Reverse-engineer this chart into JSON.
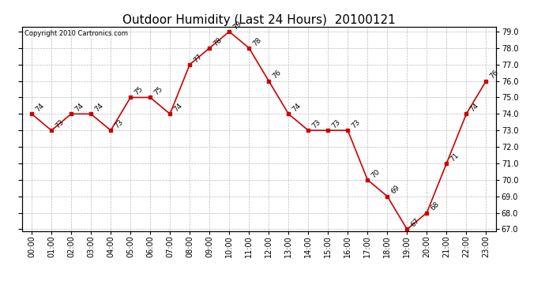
{
  "title": "Outdoor Humidity (Last 24 Hours)  20100121",
  "copyright": "Copyright 2010 Cartronics.com",
  "hours": [
    "00:00",
    "01:00",
    "02:00",
    "03:00",
    "04:00",
    "05:00",
    "06:00",
    "07:00",
    "08:00",
    "09:00",
    "10:00",
    "11:00",
    "12:00",
    "13:00",
    "14:00",
    "15:00",
    "16:00",
    "17:00",
    "18:00",
    "19:00",
    "20:00",
    "21:00",
    "22:00",
    "23:00"
  ],
  "values": [
    74,
    73,
    74,
    74,
    73,
    75,
    75,
    74,
    77,
    78,
    79,
    78,
    76,
    74,
    73,
    73,
    73,
    70,
    69,
    67,
    68,
    71,
    74,
    76
  ],
  "ylim_min": 67.0,
  "ylim_max": 79.0,
  "yticks": [
    67.0,
    68.0,
    69.0,
    70.0,
    71.0,
    72.0,
    73.0,
    74.0,
    75.0,
    76.0,
    77.0,
    78.0,
    79.0
  ],
  "line_color": "#cc0000",
  "marker_color": "#cc0000",
  "bg_color": "#ffffff",
  "grid_color": "#bbbbbb",
  "title_fontsize": 11,
  "annotation_fontsize": 6.5,
  "tick_fontsize": 7,
  "copyright_fontsize": 6
}
